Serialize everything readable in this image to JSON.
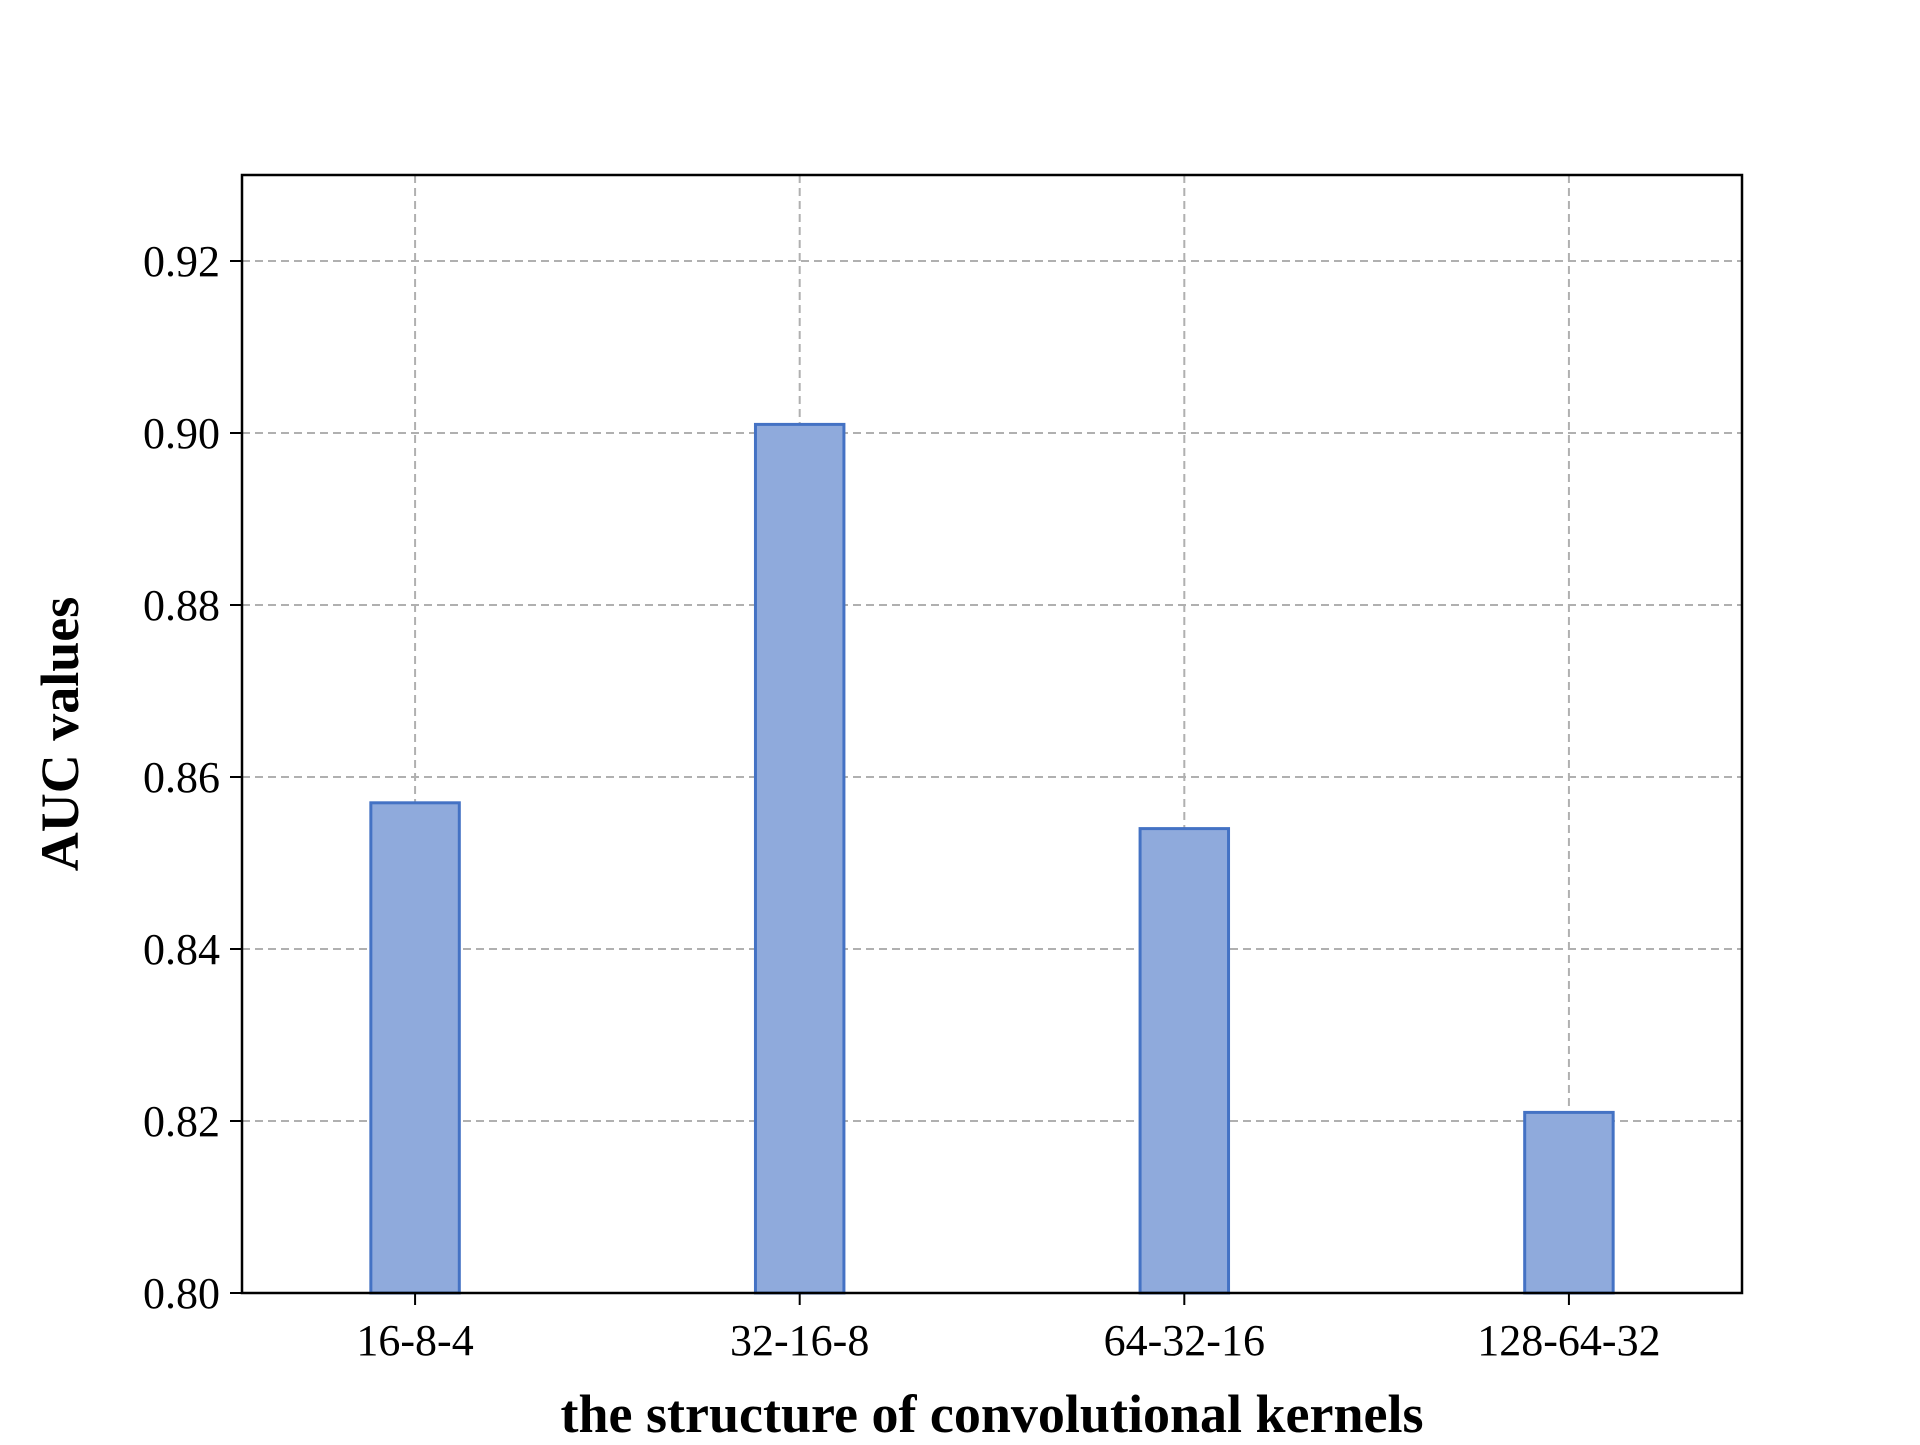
{
  "chart_data": {
    "type": "bar",
    "title": "",
    "xlabel": "the structure of convolutional kernels",
    "ylabel": "AUC values",
    "categories": [
      "16-8-4",
      "32-16-8",
      "64-32-16",
      "128-64-32"
    ],
    "values": [
      0.857,
      0.901,
      0.854,
      0.821
    ],
    "ylim": [
      0.8,
      0.93
    ],
    "yticks": [
      "0.80",
      "0.82",
      "0.84",
      "0.86",
      "0.88",
      "0.90",
      "0.92"
    ],
    "grid": true,
    "legend": "none",
    "colors": {
      "bar_fill": "#8faadc",
      "bar_edge": "#4472c4",
      "grid": "#b0b0b0",
      "axis": "#000000"
    }
  }
}
